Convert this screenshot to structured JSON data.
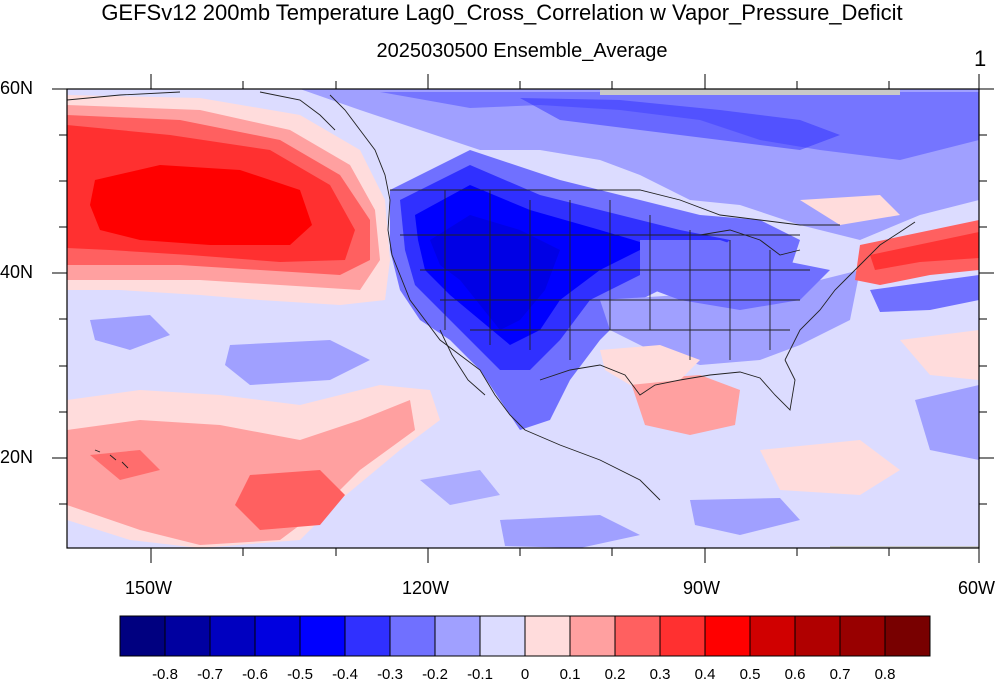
{
  "title": "GEFSv12 200mb Temperature Lag0_Cross_Correlation w Vapor_Pressure_Deficit",
  "subtitle": "2025030500 Ensemble_Average",
  "page_number": "1",
  "axes": {
    "lat_labels": [
      "60N",
      "40N",
      "20N"
    ],
    "lon_labels": [
      "150W",
      "120W",
      "90W",
      "60W"
    ]
  },
  "colorbar": {
    "labels": [
      "-0.8",
      "-0.7",
      "-0.6",
      "-0.5",
      "-0.4",
      "-0.3",
      "-0.2",
      "-0.1",
      "0",
      "0.1",
      "0.2",
      "0.3",
      "0.4",
      "0.5",
      "0.6",
      "0.7",
      "0.8"
    ],
    "colors": [
      "#000080",
      "#0000a0",
      "#0000c0",
      "#0000e0",
      "#0000ff",
      "#3030ff",
      "#7070ff",
      "#a0a0ff",
      "#dcdcff",
      "#ffdcdc",
      "#ffa0a0",
      "#ff6060",
      "#ff3030",
      "#ff0000",
      "#d00000",
      "#b00000",
      "#980000",
      "#780000"
    ]
  }
}
